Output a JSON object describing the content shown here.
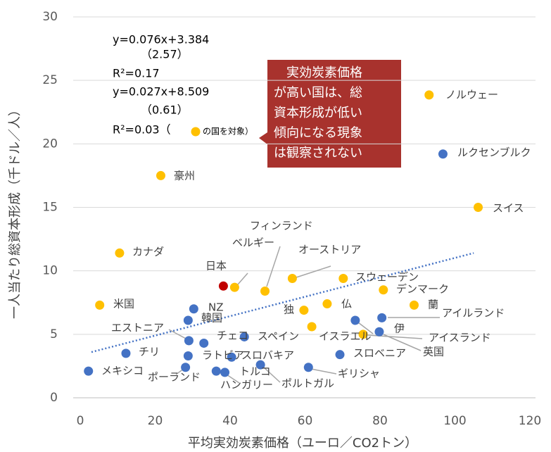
{
  "chart_data": {
    "type": "scatter",
    "x_label": "平均実効炭素価格（ユーロ／CO2トン）",
    "y_label": "一人当たり総資本形成（千ドル／人）",
    "xlim": [
      0,
      120
    ],
    "xticks": [
      0,
      20,
      40,
      60,
      80,
      100,
      120
    ],
    "ylim": [
      0,
      30
    ],
    "yticks": [
      0,
      5,
      10,
      15,
      20,
      25,
      30
    ],
    "grid": true,
    "series": [
      {
        "color": "#ffc000",
        "x": [
          93.1,
          21.5,
          10.5,
          5.2,
          106.2,
          41.2,
          49.3,
          56.6,
          70.2,
          80.9,
          89.1,
          59.7,
          65.9,
          61.8,
          75.5
        ],
        "values": [
          23.85,
          17.5,
          11.4,
          7.3,
          15.0,
          8.7,
          8.4,
          9.4,
          9.4,
          8.5,
          7.3,
          6.9,
          7.4,
          5.6,
          5.0
        ]
      },
      {
        "color": "#c00000",
        "x": [
          38.2
        ],
        "values": [
          8.8
        ]
      },
      {
        "color": "#4472c4",
        "x": [
          96.8,
          30.3,
          28.8,
          29.0,
          33.0,
          43.8,
          12.2,
          2.2,
          28.1,
          28.8,
          40.4,
          36.3,
          38.6,
          48.1,
          60.9,
          69.3,
          73.4,
          79.8,
          80.5
        ],
        "values": [
          19.2,
          7.0,
          6.1,
          4.5,
          4.3,
          4.8,
          3.5,
          2.1,
          2.4,
          3.3,
          3.2,
          2.1,
          2.0,
          2.6,
          2.4,
          3.4,
          6.1,
          5.2,
          6.3
        ]
      }
    ],
    "trendline": {
      "color": "#4472c4",
      "x": [
        3,
        105
      ],
      "values": [
        3.6,
        11.4
      ]
    },
    "point_labels": [
      "ノルウェー",
      "ルクセンブルク",
      "豪州",
      "スイス",
      "カナダ",
      "フィンランド",
      "ベルギー",
      "オーストリア",
      "日本",
      "スウェーデン",
      "デンマーク",
      "蘭",
      "アイルランド",
      "米国",
      "NZ",
      "韓国",
      "独",
      "仏",
      "エストニア",
      "チェコ",
      "スペイン",
      "イスラエル",
      "伊",
      "アイスランド",
      "英国",
      "チリ",
      "ラトビア",
      "スロバキア",
      "スロベニア",
      "メキシコ",
      "ポーランド",
      "トルコ",
      "ハンガリー",
      "ポルトガル",
      "ギリシャ"
    ],
    "equations": [
      "y=0.076x+3.384",
      "（2.57）",
      "R²=0.17",
      "y=0.027x+8.509",
      "（0.61）",
      "R²=0.03（"
    ],
    "equation_note": "の国を対象）",
    "callout": [
      "　実効炭素価格",
      "が高い国は、総",
      "資本形成が低い",
      "傾向になる現象",
      "は観察されない"
    ]
  }
}
